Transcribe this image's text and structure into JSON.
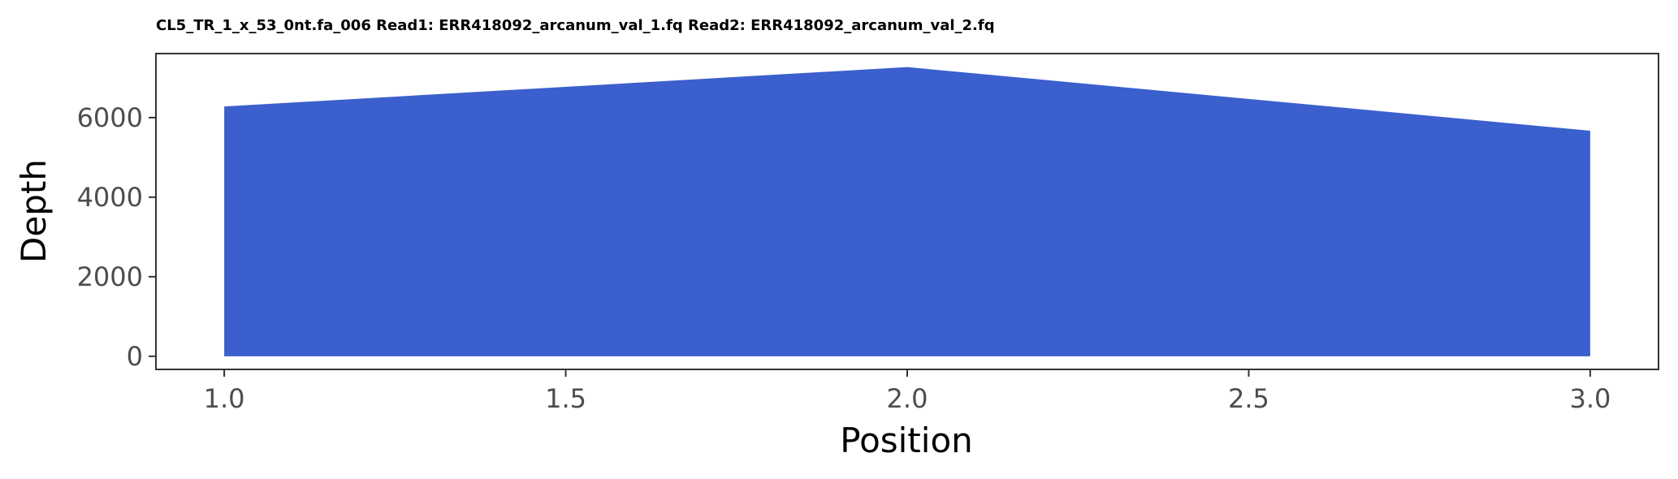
{
  "chart_data": {
    "type": "area",
    "title": "CL5_TR_1_x_53_0nt.fa_006 Read1: ERR418092_arcanum_val_1.fq Read2: ERR418092_arcanum_val_2.fq",
    "xlabel": "Position",
    "ylabel": "Depth",
    "x": [
      1.0,
      2.0,
      3.0
    ],
    "y": [
      6280,
      7270,
      5670
    ],
    "xlim": [
      0.9,
      3.1
    ],
    "ylim": [
      -330,
      7610
    ],
    "x_ticks": [
      1.0,
      1.5,
      2.0,
      2.5,
      3.0
    ],
    "x_tick_labels": [
      "1.0",
      "1.5",
      "2.0",
      "2.5",
      "3.0"
    ],
    "y_ticks": [
      0,
      2000,
      4000,
      6000
    ],
    "y_tick_labels": [
      "0",
      "2000",
      "4000",
      "6000"
    ],
    "grid": false,
    "legend": "none",
    "fill_color": "#3b5fcd",
    "panel_border_color": "#333333"
  }
}
